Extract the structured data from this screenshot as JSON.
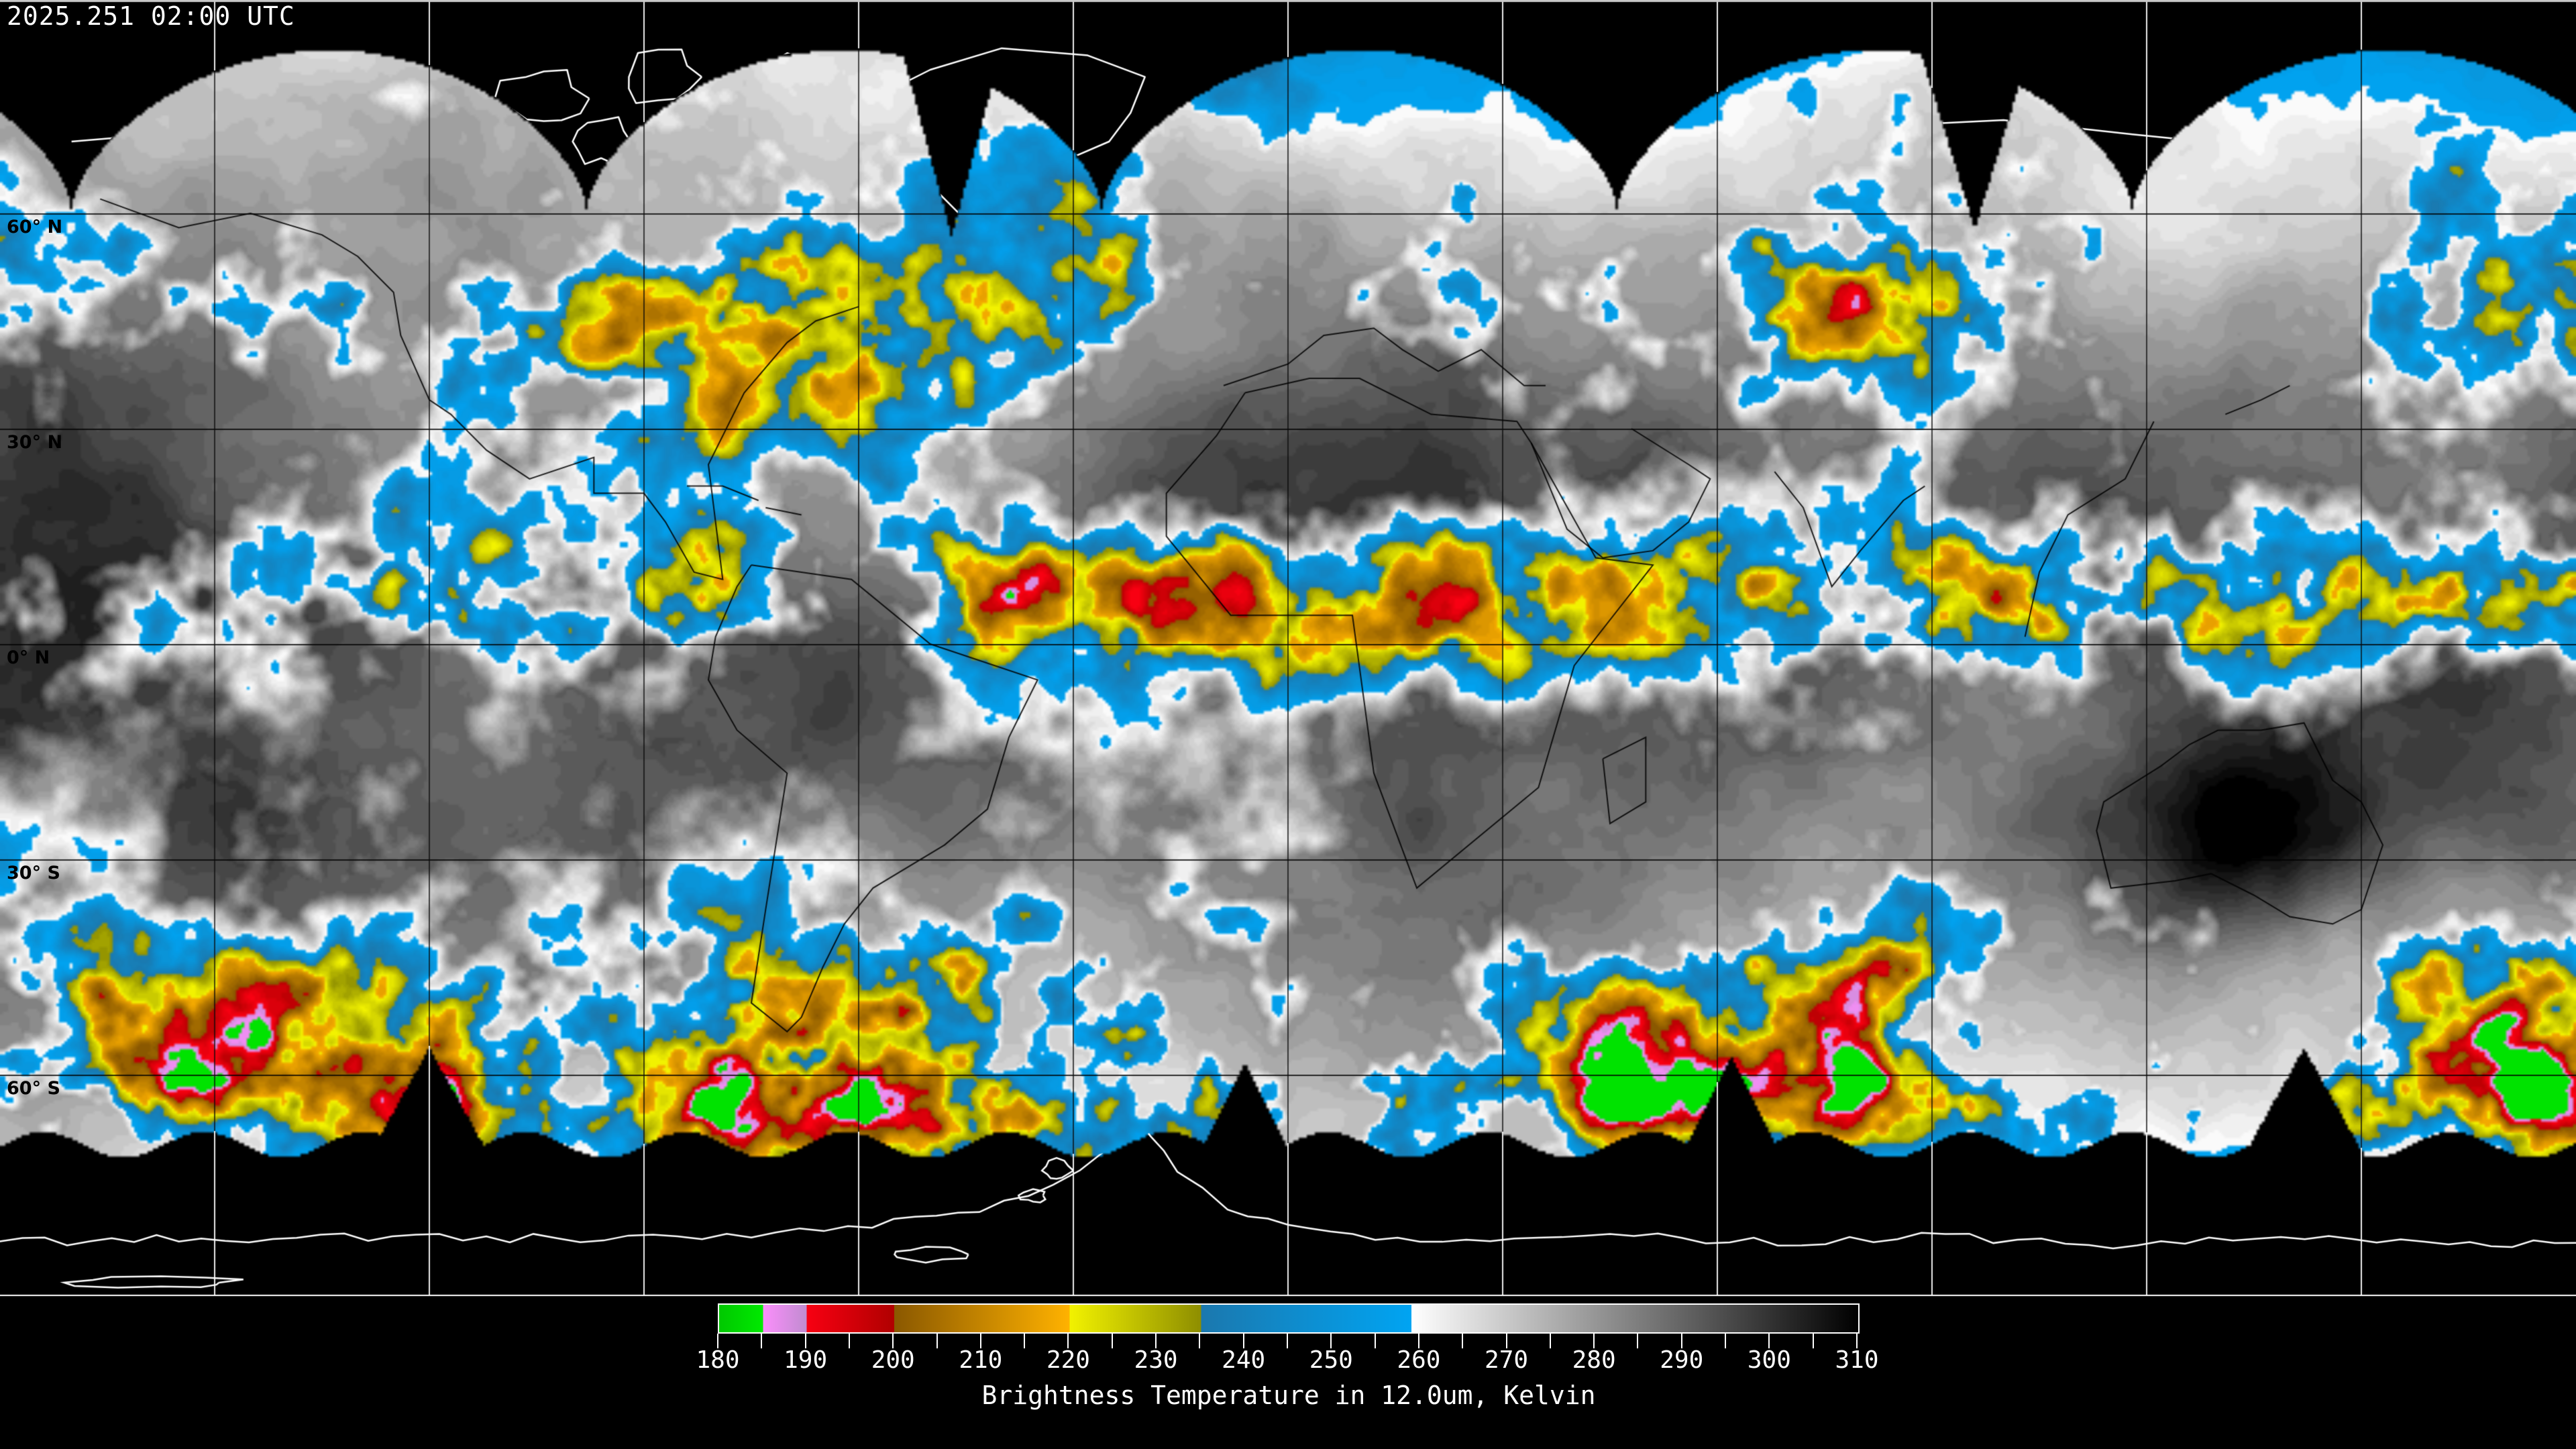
{
  "header": {
    "timestamp": "2025.251 02:00 UTC"
  },
  "map": {
    "latitude_labels": [
      {
        "label": "60° N",
        "lat": 60
      },
      {
        "label": "30° N",
        "lat": 30
      },
      {
        "label": "0° N",
        "lat": 0
      },
      {
        "label": "30° S",
        "lat": -30
      },
      {
        "label": "60° S",
        "lat": -60
      }
    ]
  },
  "chart_data": {
    "type": "heatmap",
    "timestamp": "2025.251 02:00 UTC",
    "latitude_gridlines_deg": [
      60,
      30,
      0,
      -30,
      -60
    ],
    "longitude_gridline_interval_deg": 30,
    "colorbar": {
      "label": "Brightness Temperature in 12.0um, Kelvin",
      "units": "Kelvin",
      "range_kelvin": [
        180,
        310
      ],
      "major_ticks": [
        180,
        190,
        200,
        210,
        220,
        230,
        240,
        250,
        260,
        270,
        280,
        290,
        300,
        310
      ],
      "minor_tick_interval": 5,
      "segments": [
        {
          "from": 180,
          "to": 185,
          "color_from": "#00c800",
          "color_to": "#00ea00",
          "name": "green"
        },
        {
          "from": 185,
          "to": 190,
          "color_from": "#fb8efb",
          "color_to": "#c08cd0",
          "name": "violet"
        },
        {
          "from": 190,
          "to": 200,
          "color_from": "#f80012",
          "color_to": "#b00000",
          "name": "red"
        },
        {
          "from": 200,
          "to": 220,
          "color_from": "#8a5800",
          "color_to": "#ffb200",
          "name": "brown-orange"
        },
        {
          "from": 220,
          "to": 235,
          "color_from": "#f2f200",
          "color_to": "#8e8e00",
          "name": "yellow-olive"
        },
        {
          "from": 235,
          "to": 259,
          "color_from": "#1b78ae",
          "color_to": "#00a4f2",
          "name": "blue"
        },
        {
          "from": 259,
          "to": 310,
          "color_from": "#ffffff",
          "color_to": "#000000",
          "name": "grayscale"
        }
      ]
    }
  }
}
